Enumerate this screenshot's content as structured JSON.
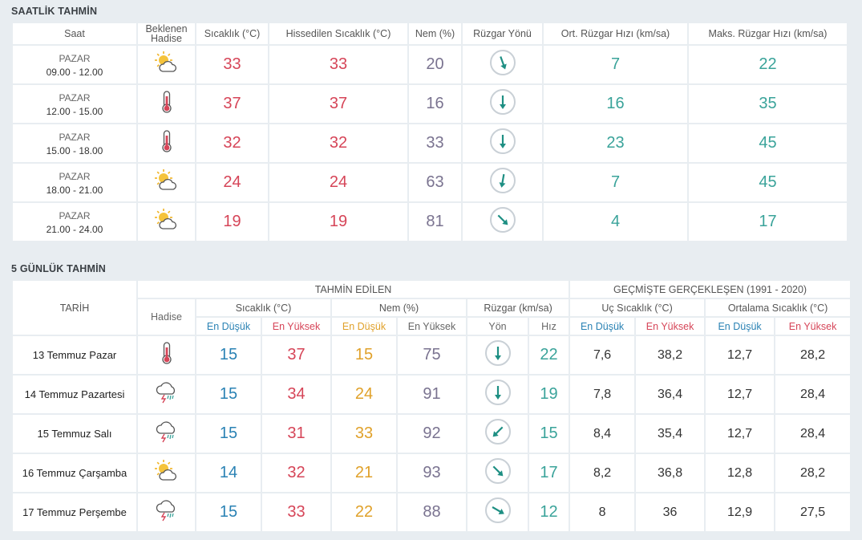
{
  "hourly": {
    "title": "SAATLİK TAHMİN",
    "headers": {
      "saat": "Saat",
      "hadise": "Beklenen Hadise",
      "sicaklik": "Sıcaklık (°C)",
      "hissedilen": "Hissedilen Sıcaklık (°C)",
      "nem": "Nem (%)",
      "ruzgar_yonu": "Rüzgar Yönü",
      "ort_ruzgar": "Ort. Rüzgar Hızı (km/sa)",
      "maks_ruzgar": "Maks. Rüzgar Hızı (km/sa)"
    },
    "rows": [
      {
        "day": "PAZAR",
        "time": "09.00 - 12.00",
        "icon": "sun-cloud-icon",
        "temp": "33",
        "feels": "33",
        "humidity": "20",
        "wind_dir_deg": 160,
        "wind_avg": "7",
        "wind_max": "22"
      },
      {
        "day": "PAZAR",
        "time": "12.00 - 15.00",
        "icon": "thermometer-icon",
        "temp": "37",
        "feels": "37",
        "humidity": "16",
        "wind_dir_deg": 180,
        "wind_avg": "16",
        "wind_max": "35"
      },
      {
        "day": "PAZAR",
        "time": "15.00 - 18.00",
        "icon": "thermometer-icon",
        "temp": "32",
        "feels": "32",
        "humidity": "33",
        "wind_dir_deg": 180,
        "wind_avg": "23",
        "wind_max": "45"
      },
      {
        "day": "PAZAR",
        "time": "18.00 - 21.00",
        "icon": "sun-cloud-icon",
        "temp": "24",
        "feels": "24",
        "humidity": "63",
        "wind_dir_deg": 190,
        "wind_avg": "7",
        "wind_max": "45"
      },
      {
        "day": "PAZAR",
        "time": "21.00 - 24.00",
        "icon": "sun-cloud-icon",
        "temp": "19",
        "feels": "19",
        "humidity": "81",
        "wind_dir_deg": 135,
        "wind_avg": "4",
        "wind_max": "17"
      }
    ]
  },
  "daily": {
    "title": "5 GÜNLÜK TAHMİN",
    "headers": {
      "tarih": "TARİH",
      "tahmin_edilen": "TAHMİN EDİLEN",
      "gecmiste": "GEÇMİŞTE GERÇEKLEŞEN (1991 - 2020)",
      "hadise": "Hadise",
      "sicaklik": "Sıcaklık (°C)",
      "nem": "Nem (%)",
      "ruzgar": "Rüzgar (km/sa)",
      "uc_sicaklik": "Uç Sıcaklık (°C)",
      "ortalama_sicaklik": "Ortalama Sıcaklık (°C)",
      "en_dusuk": "En Düşük",
      "en_yuksek": "En Yüksek",
      "yon": "Yön",
      "hiz": "Hız"
    },
    "rows": [
      {
        "date": "13 Temmuz Pazar",
        "icon": "thermometer-icon",
        "t_min": "15",
        "t_max": "37",
        "h_min": "15",
        "h_max": "75",
        "wind_dir_deg": 180,
        "wind_speed": "22",
        "ext_min": "7,6",
        "ext_max": "38,2",
        "avg_min": "12,7",
        "avg_max": "28,2"
      },
      {
        "date": "14 Temmuz Pazartesi",
        "icon": "thunderstorm-icon",
        "t_min": "15",
        "t_max": "34",
        "h_min": "24",
        "h_max": "91",
        "wind_dir_deg": 180,
        "wind_speed": "19",
        "ext_min": "7,8",
        "ext_max": "36,4",
        "avg_min": "12,7",
        "avg_max": "28,4"
      },
      {
        "date": "15 Temmuz Salı",
        "icon": "thunderstorm-icon",
        "t_min": "15",
        "t_max": "31",
        "h_min": "33",
        "h_max": "92",
        "wind_dir_deg": 225,
        "wind_speed": "15",
        "ext_min": "8,4",
        "ext_max": "35,4",
        "avg_min": "12,7",
        "avg_max": "28,4"
      },
      {
        "date": "16 Temmuz Çarşamba",
        "icon": "sun-cloud-icon",
        "t_min": "14",
        "t_max": "32",
        "h_min": "21",
        "h_max": "93",
        "wind_dir_deg": 135,
        "wind_speed": "17",
        "ext_min": "8,2",
        "ext_max": "36,8",
        "avg_min": "12,8",
        "avg_max": "28,2"
      },
      {
        "date": "17 Temmuz Perşembe",
        "icon": "thunderstorm-icon",
        "t_min": "15",
        "t_max": "33",
        "h_min": "22",
        "h_max": "88",
        "wind_dir_deg": 120,
        "wind_speed": "12",
        "ext_min": "8",
        "ext_max": "36",
        "avg_min": "12,9",
        "avg_max": "27,5"
      }
    ]
  },
  "colors": {
    "red": "#d64558",
    "purple": "#7a7390",
    "teal": "#3aa39a",
    "blue": "#2a82b4",
    "orange": "#e0a12a"
  }
}
